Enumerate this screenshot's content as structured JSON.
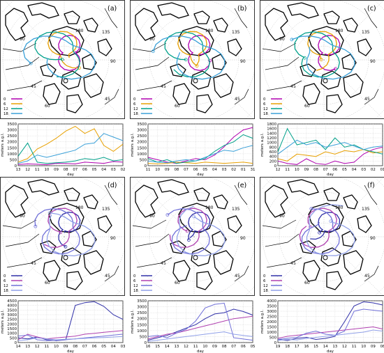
{
  "figure": {
    "panels": [
      {
        "letter": "(a)",
        "map_labels": [
          "180",
          "135",
          "90",
          "-45",
          "60",
          "90",
          "45"
        ],
        "legend": [
          "0",
          "6",
          "12",
          "18"
        ],
        "legend_colors": [
          "#b000b0",
          "#e8a000",
          "#00a08a",
          "#3aa0d8"
        ],
        "timeseries": {
          "ylabel": "meters a.g.l.",
          "xlabel": "day",
          "yticks": [
            0,
            500,
            1000,
            1500,
            2000,
            2500,
            3000,
            3500
          ],
          "ymax": 3500,
          "xticks": [
            "13",
            "12",
            "11",
            "10",
            "09",
            "08",
            "07",
            "06",
            "05",
            "04",
            "03",
            "02"
          ],
          "series": [
            {
              "color": "#b000b0",
              "values": [
                100,
                150,
                120,
                80,
                200,
                180,
                150,
                300,
                250,
                200,
                350,
                300
              ]
            },
            {
              "color": "#e8a000",
              "values": [
                300,
                600,
                1400,
                1800,
                2300,
                2900,
                3300,
                2700,
                3100,
                1700,
                1200,
                1800
              ]
            },
            {
              "color": "#00a08a",
              "values": [
                800,
                1900,
                300,
                200,
                250,
                300,
                400,
                600,
                500,
                700,
                400,
                500
              ]
            },
            {
              "color": "#3aa0d8",
              "values": [
                200,
                400,
                900,
                700,
                900,
                1100,
                1300,
                1800,
                1900,
                2700,
                2400,
                2100
              ]
            }
          ]
        }
      },
      {
        "letter": "(b)",
        "map_labels": [
          "180",
          "135",
          "90",
          "-45",
          "60",
          "90",
          "45"
        ],
        "legend": [
          "0",
          "6",
          "12",
          "18"
        ],
        "legend_colors": [
          "#b000b0",
          "#e8a000",
          "#00a08a",
          "#3aa0d8"
        ],
        "timeseries": {
          "ylabel": "meters a.g.l.",
          "xlabel": "day",
          "yticks": [
            0,
            500,
            1000,
            1500,
            2000,
            2500,
            3000,
            3500
          ],
          "ymax": 3500,
          "xticks": [
            "11",
            "10",
            "09",
            "08",
            "07",
            "06",
            "05",
            "04",
            "03",
            "02",
            "01",
            "31"
          ],
          "series": [
            {
              "color": "#b000b0",
              "values": [
                700,
                500,
                300,
                200,
                400,
                600,
                500,
                900,
                1600,
                2400,
                3000,
                3200
              ]
            },
            {
              "color": "#e8a000",
              "values": [
                200,
                150,
                200,
                300,
                250,
                200,
                300,
                250,
                200,
                250,
                300,
                200
              ]
            },
            {
              "color": "#00a08a",
              "values": [
                600,
                300,
                500,
                200,
                300,
                400,
                600,
                1200,
                1700,
                2000,
                2600,
                2300
              ]
            },
            {
              "color": "#3aa0d8",
              "values": [
                400,
                300,
                250,
                400,
                500,
                400,
                700,
                1000,
                1300,
                1200,
                1500,
                1700
              ]
            }
          ]
        }
      },
      {
        "letter": "(c)",
        "map_labels": [
          "180",
          "135",
          "90",
          "-45",
          "60",
          "90",
          "45"
        ],
        "legend": [
          "0",
          "6",
          "12",
          "18"
        ],
        "legend_colors": [
          "#b000b0",
          "#e8a000",
          "#00a08a",
          "#3aa0d8"
        ],
        "timeseries": {
          "ylabel": "meters a.g.l.",
          "xlabel": "day",
          "yticks": [
            0,
            200,
            400,
            600,
            800,
            1000,
            1200,
            1400,
            1600,
            1800
          ],
          "ymax": 1800,
          "xticks": [
            "12",
            "11",
            "10",
            "09",
            "08",
            "07",
            "06",
            "05",
            "04",
            "03",
            "02",
            "01"
          ],
          "series": [
            {
              "color": "#b000b0",
              "values": [
                200,
                100,
                50,
                300,
                100,
                50,
                200,
                100,
                150,
                500,
                700,
                800
              ]
            },
            {
              "color": "#e8a000",
              "values": [
                300,
                200,
                500,
                450,
                400,
                600,
                500,
                650,
                600,
                700,
                550,
                600
              ]
            },
            {
              "color": "#00a08a",
              "values": [
                600,
                1600,
                900,
                1000,
                1100,
                700,
                1200,
                800,
                900,
                700,
                600,
                500
              ]
            },
            {
              "color": "#3aa0d8",
              "values": [
                500,
                800,
                1100,
                900,
                1000,
                800,
                900,
                1000,
                850,
                700,
                800,
                850
              ]
            }
          ]
        }
      },
      {
        "letter": "(d)",
        "map_labels": [
          "180",
          "135",
          "90",
          "-45",
          "60",
          "90",
          "45"
        ],
        "legend": [
          "0",
          "6",
          "12",
          "18"
        ],
        "legend_colors": [
          "#3030a8",
          "#b040b0",
          "#7070d8",
          "#90a0e8"
        ],
        "timeseries": {
          "ylabel": "meters a.g.l.",
          "xlabel": "day",
          "yticks": [
            0,
            500,
            1000,
            1500,
            2000,
            2500,
            3000,
            3500,
            4000,
            4500
          ],
          "ymax": 4500,
          "xticks": [
            "14",
            "13",
            "12",
            "11",
            "10",
            "09",
            "08",
            "07",
            "06",
            "05",
            "04",
            "03"
          ],
          "series": [
            {
              "color": "#3030a8",
              "values": [
                500,
                400,
                600,
                300,
                200,
                300,
                4000,
                4300,
                4400,
                3900,
                3000,
                2500
              ]
            },
            {
              "color": "#b040b0",
              "values": [
                300,
                900,
                600,
                400,
                500,
                600,
                700,
                900,
                1000,
                1100,
                1200,
                1300
              ]
            },
            {
              "color": "#7070d8",
              "values": [
                700,
                800,
                300,
                200,
                250,
                300,
                400,
                500,
                600,
                700,
                800,
                900
              ]
            },
            {
              "color": "#90a0e8",
              "values": [
                200,
                300,
                500,
                400,
                300,
                350,
                400,
                450,
                500,
                550,
                600,
                650
              ]
            }
          ]
        }
      },
      {
        "letter": "(e)",
        "map_labels": [
          "180",
          "135",
          "90",
          "-45",
          "60",
          "90",
          "45"
        ],
        "legend": [
          "0",
          "6",
          "12",
          "18"
        ],
        "legend_colors": [
          "#3030a8",
          "#b040b0",
          "#7070d8",
          "#90a0e8"
        ],
        "timeseries": {
          "ylabel": "meters a.g.l.",
          "xlabel": "day",
          "yticks": [
            0,
            500,
            1000,
            1500,
            2000,
            2500,
            3000,
            3500
          ],
          "ymax": 3500,
          "xticks": [
            "16",
            "15",
            "14",
            "13",
            "12",
            "11",
            "10",
            "09",
            "08",
            "07",
            "06",
            "05"
          ],
          "series": [
            {
              "color": "#3030a8",
              "values": [
                200,
                400,
                600,
                900,
                1200,
                1500,
                2000,
                2400,
                2500,
                2800,
                2600,
                2300
              ]
            },
            {
              "color": "#b040b0",
              "values": [
                300,
                500,
                700,
                800,
                1000,
                1200,
                1400,
                1600,
                1800,
                2000,
                2100,
                2200
              ]
            },
            {
              "color": "#7070d8",
              "values": [
                500,
                600,
                400,
                800,
                1100,
                1800,
                2900,
                3200,
                3300,
                400,
                300,
                200
              ]
            },
            {
              "color": "#90a0e8",
              "values": [
                100,
                200,
                300,
                400,
                500,
                600,
                700,
                800,
                900,
                700,
                600,
                500
              ]
            }
          ]
        }
      },
      {
        "letter": "(f)",
        "map_labels": [
          "180",
          "135",
          "90",
          "-45",
          "60",
          "90",
          "45"
        ],
        "legend": [
          "0",
          "6",
          "12",
          "18"
        ],
        "legend_colors": [
          "#3030a8",
          "#b040b0",
          "#7070d8",
          "#90a0e8"
        ],
        "timeseries": {
          "ylabel": "meters a.g.l.",
          "xlabel": "day",
          "yticks": [
            0,
            500,
            1000,
            1500,
            2000,
            2500,
            3000,
            3500,
            4000
          ],
          "ymax": 4000,
          "xticks": [
            "19",
            "18",
            "17",
            "16",
            "15",
            "14",
            "13",
            "12",
            "11",
            "10",
            "09",
            "08"
          ],
          "series": [
            {
              "color": "#3030a8",
              "values": [
                300,
                200,
                400,
                500,
                300,
                400,
                600,
                2000,
                3500,
                3900,
                3800,
                3600
              ]
            },
            {
              "color": "#b040b0",
              "values": [
                400,
                600,
                700,
                800,
                900,
                1000,
                1100,
                1200,
                1300,
                1400,
                1500,
                1300
              ]
            },
            {
              "color": "#7070d8",
              "values": [
                300,
                400,
                500,
                900,
                1100,
                800,
                700,
                1100,
                3000,
                3200,
                3100,
                3000
              ]
            },
            {
              "color": "#90a0e8",
              "values": [
                200,
                300,
                250,
                400,
                500,
                600,
                700,
                800,
                900,
                1000,
                1200,
                1100
              ]
            }
          ]
        }
      }
    ]
  }
}
